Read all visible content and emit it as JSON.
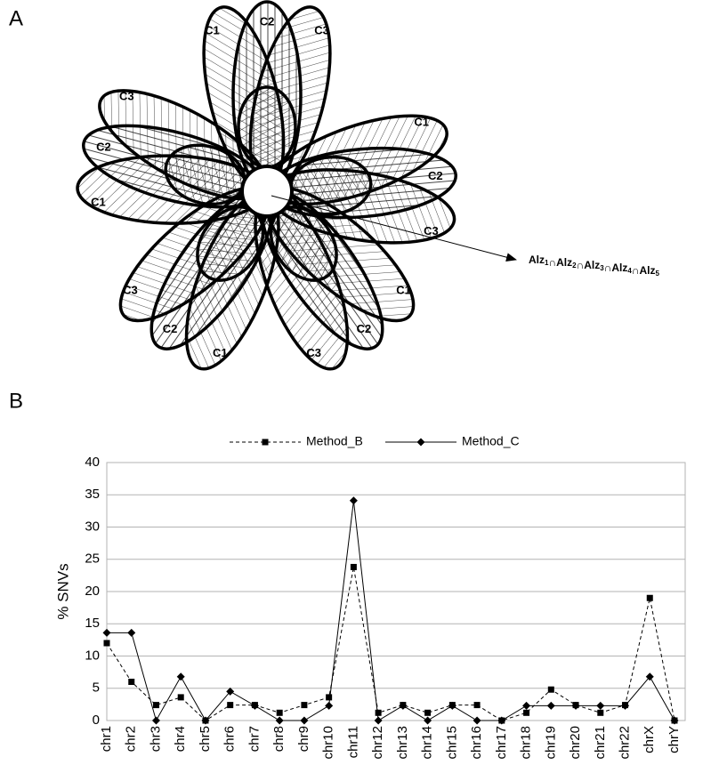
{
  "panel_a": {
    "label": "A",
    "petals": [
      {
        "labels": [
          "C1",
          "C2",
          "C3"
        ]
      },
      {
        "labels": [
          "C1",
          "C2",
          "C3"
        ]
      },
      {
        "labels": [
          "C1",
          "C2",
          "C3"
        ]
      },
      {
        "labels": [
          "C1",
          "C2",
          "C3"
        ]
      },
      {
        "labels": [
          "C1",
          "C2",
          "C3"
        ]
      }
    ],
    "operator": "∩",
    "intersection_terms": [
      {
        "base": "Alz",
        "sub": "1"
      },
      {
        "base": "Alz",
        "sub": "2"
      },
      {
        "base": "Alz",
        "sub": "3"
      },
      {
        "base": "Alz",
        "sub": "4"
      },
      {
        "base": "Alz",
        "sub": "5"
      }
    ]
  },
  "panel_b": {
    "label": "B"
  },
  "chart_data": {
    "type": "line",
    "ylabel": "% SNVs",
    "categories": [
      "chr1",
      "chr2",
      "chr3",
      "chr4",
      "chr5",
      "chr6",
      "chr7",
      "chr8",
      "chr9",
      "chr10",
      "chr11",
      "chr12",
      "chr13",
      "chr14",
      "chr15",
      "chr16",
      "chr17",
      "chr18",
      "chr19",
      "chr20",
      "chr21",
      "chr22",
      "chrX",
      "chrY"
    ],
    "series": [
      {
        "name": "Method_B",
        "color": "#000000",
        "dash": true,
        "marker": "square",
        "values": [
          12,
          6,
          2.4,
          3.6,
          0,
          2.4,
          2.4,
          1.2,
          2.4,
          3.6,
          23.8,
          1.2,
          2.4,
          1.2,
          2.4,
          2.4,
          0,
          1.2,
          4.8,
          2.4,
          1.2,
          2.4,
          19,
          0
        ]
      },
      {
        "name": "Method_C",
        "color": "#000000",
        "dash": false,
        "marker": "diamond",
        "values": [
          13.6,
          13.6,
          0,
          6.8,
          0,
          4.5,
          2.3,
          0,
          0,
          2.3,
          34.1,
          0,
          2.3,
          0,
          2.3,
          0,
          0,
          2.3,
          2.3,
          2.3,
          2.3,
          2.3,
          6.8,
          0
        ]
      }
    ],
    "ylim": [
      0,
      40
    ],
    "yticks": [
      0,
      5,
      10,
      15,
      20,
      25,
      30,
      35,
      40
    ],
    "grid": true,
    "legend": "top"
  }
}
